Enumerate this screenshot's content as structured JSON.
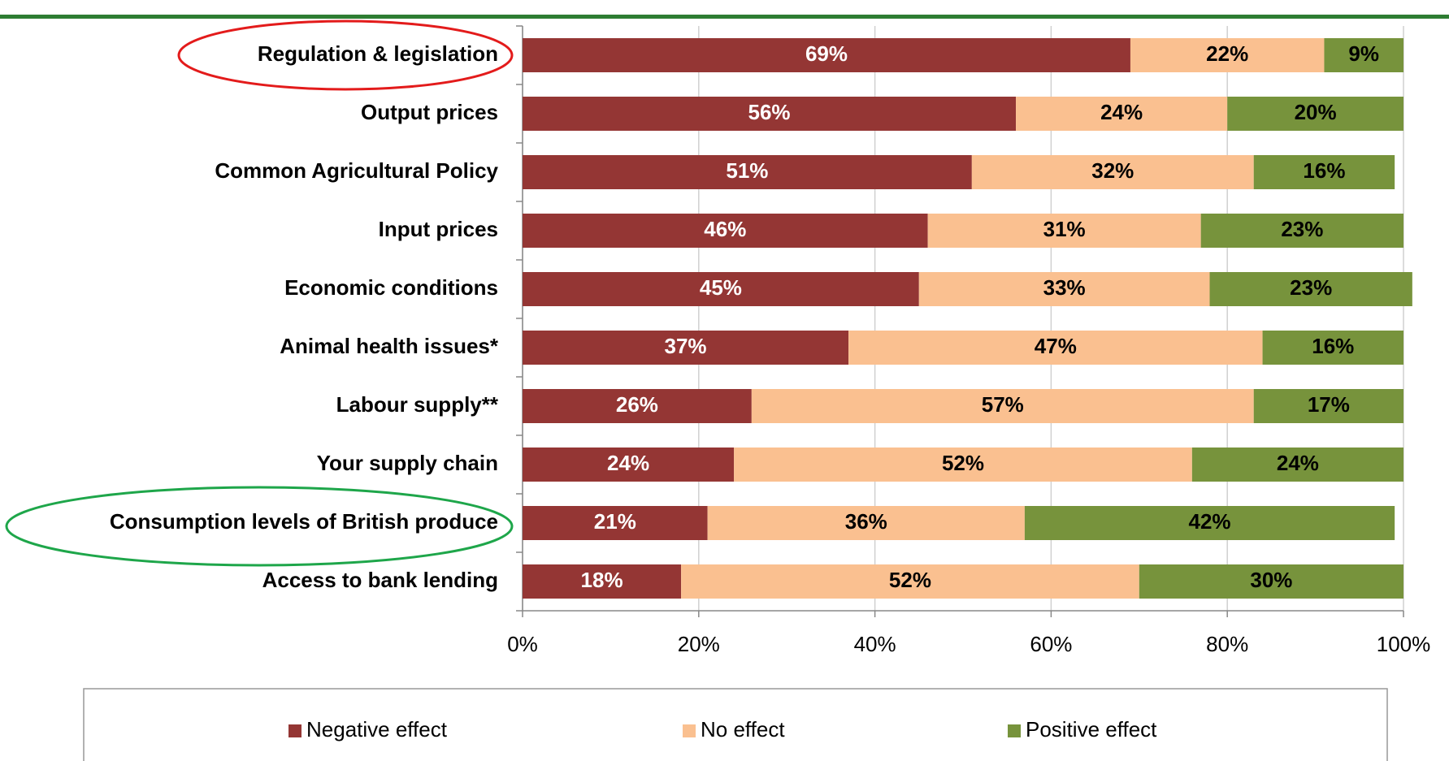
{
  "chart_data": {
    "type": "stacked-barh",
    "categories": [
      "Regulation & legislation",
      "Output prices",
      "Common Agricultural Policy",
      "Input prices",
      "Economic conditions",
      "Animal health issues*",
      "Labour supply**",
      "Your supply chain",
      "Consumption levels of British produce",
      "Access to bank lending"
    ],
    "series": [
      {
        "name": "Negative effect",
        "color": "#943634",
        "label_color": "#ffffff",
        "values": [
          69,
          56,
          51,
          46,
          45,
          37,
          26,
          24,
          21,
          18
        ],
        "value_labels": [
          "69%",
          "56%",
          "51%",
          "46%",
          "45%",
          "37%",
          "26%",
          "24%",
          "21%",
          "18%"
        ]
      },
      {
        "name": "No effect",
        "color": "#fac090",
        "label_color": "#000000",
        "values": [
          22,
          24,
          32,
          31,
          33,
          47,
          57,
          52,
          36,
          52
        ],
        "value_labels": [
          "22%",
          "24%",
          "32%",
          "31%",
          "33%",
          "47%",
          "57%",
          "52%",
          "36%",
          "52%"
        ]
      },
      {
        "name": "Positive effect",
        "color": "#77933c",
        "label_color": "#000000",
        "values": [
          9,
          20,
          16,
          23,
          23,
          16,
          17,
          24,
          42,
          30
        ],
        "value_labels": [
          "9%",
          "20%",
          "16%",
          "23%",
          "23%",
          "16%",
          "17%",
          "24%",
          "42%",
          "30%"
        ]
      }
    ],
    "xlim": [
      0,
      100
    ],
    "xticks": [
      {
        "value": 0,
        "label": "0%"
      },
      {
        "value": 20,
        "label": "20%"
      },
      {
        "value": 40,
        "label": "40%"
      },
      {
        "value": 60,
        "label": "60%"
      },
      {
        "value": 80,
        "label": "80%"
      },
      {
        "value": 100,
        "label": "100%"
      }
    ],
    "grid": true,
    "legend": "bottom"
  }
}
